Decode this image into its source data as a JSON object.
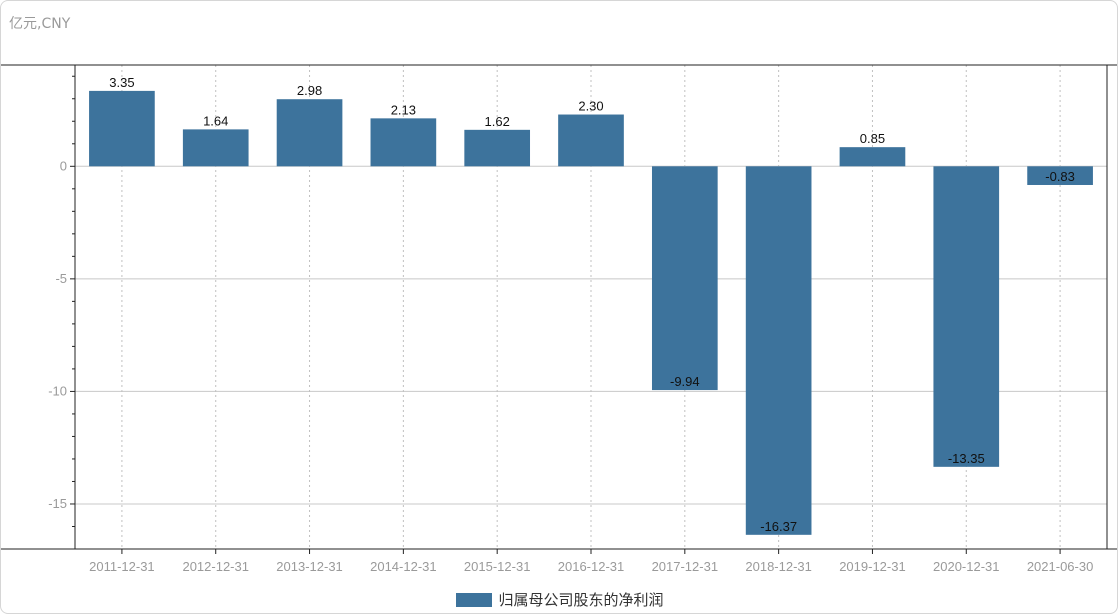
{
  "unit_label": "亿元,CNY",
  "colors": {
    "bar": "#3d739c",
    "axis": "#222222",
    "grid_major": "#c8c8c8",
    "grid_minor": "#c0c0c0",
    "tick_text": "#9a9a9a"
  },
  "chart_data": {
    "type": "bar",
    "categories": [
      "2011-12-31",
      "2012-12-31",
      "2013-12-31",
      "2014-12-31",
      "2015-12-31",
      "2016-12-31",
      "2017-12-31",
      "2018-12-31",
      "2019-12-31",
      "2020-12-31",
      "2021-06-30"
    ],
    "series": [
      {
        "name": "归属母公司股东的净利润",
        "values": [
          3.35,
          1.64,
          2.98,
          2.13,
          1.62,
          2.3,
          -9.94,
          -16.37,
          0.85,
          -13.35,
          -0.83
        ],
        "labels": [
          "3.35",
          "1.64",
          "2.98",
          "2.13",
          "1.62",
          "2.30",
          "-9.94",
          "-16.37",
          "0.85",
          "-13.35",
          "-0.83"
        ]
      }
    ],
    "ylim": [
      -17,
      4.5
    ],
    "yticks": [
      0,
      -5,
      -10,
      -15
    ],
    "ytick_labels": [
      "0",
      "-5",
      "-10",
      "-15"
    ],
    "grid": true,
    "legend_position": "bottom-center"
  }
}
